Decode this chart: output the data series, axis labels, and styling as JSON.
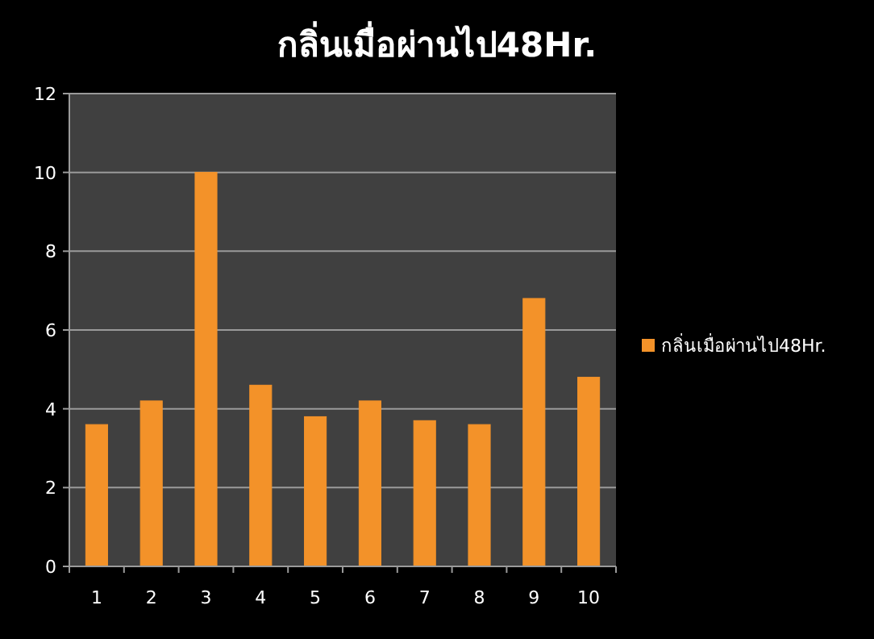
{
  "chart_data": {
    "type": "bar",
    "title": "กลิ่นเมื่อผ่านไป48Hr.",
    "categories": [
      "1",
      "2",
      "3",
      "4",
      "5",
      "6",
      "7",
      "8",
      "9",
      "10"
    ],
    "series": [
      {
        "name": "กลิ่นเมื่อผ่านไป48Hr.",
        "color": "#f39229",
        "values": [
          3.6,
          4.2,
          10,
          4.6,
          3.8,
          4.2,
          3.7,
          3.6,
          6.8,
          4.8
        ]
      }
    ],
    "ylim": [
      0,
      12
    ],
    "yticks": [
      0,
      2,
      4,
      6,
      8,
      10,
      12
    ],
    "grid": "y",
    "legend": "right"
  }
}
